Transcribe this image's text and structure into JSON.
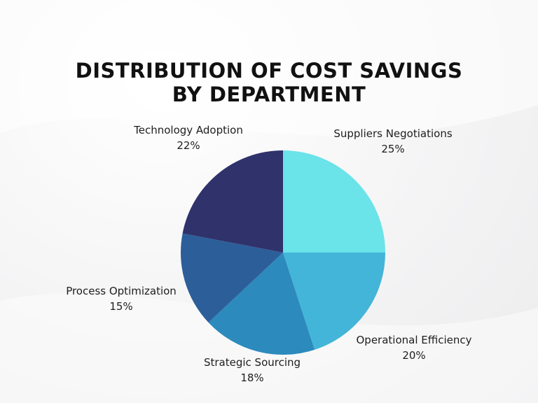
{
  "title_lines": [
    "DISTRIBUTION OF COST SAVINGS",
    "BY DEPARTMENT"
  ],
  "chart_data": {
    "type": "pie",
    "title": "DISTRIBUTION OF COST SAVINGS BY DEPARTMENT",
    "slices": [
      {
        "label": "Suppliers Negotiations",
        "value": 25,
        "value_label": "25%",
        "color": "#6ae3e9"
      },
      {
        "label": "Operational Efficiency",
        "value": 20,
        "value_label": "20%",
        "color": "#43b5d8"
      },
      {
        "label": "Strategic Sourcing",
        "value": 18,
        "value_label": "18%",
        "color": "#2c8abd"
      },
      {
        "label": "Process Optimization",
        "value": 15,
        "value_label": "15%",
        "color": "#2c5f9a"
      },
      {
        "label": "Technology Adoption",
        "value": 22,
        "value_label": "22%",
        "color": "#2f326b"
      }
    ],
    "start": "12 o'clock, clockwise",
    "legend": "none (labels outside slices)"
  }
}
